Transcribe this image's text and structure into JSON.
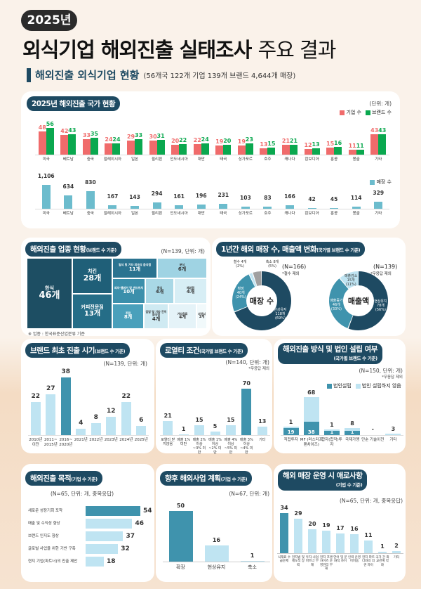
{
  "header": {
    "year_badge": "2025년",
    "title_bold": "외식기업 해외진출 실태조사",
    "title_light": "주요 결과",
    "section_title": "해외진출 외식기업 현황",
    "section_summary": "(56개국 122개 기업 139개 브랜드 4,644개 매장)"
  },
  "colors": {
    "navy": "#1e4a62",
    "company": "#f06b6b",
    "brand": "#0aa84f",
    "store": "#6cbccd",
    "dark_bar": "#3f93ad",
    "light_bar": "#bfe4f2"
  },
  "country": {
    "chip": "2025년 해외진출 국가 현황",
    "unit": "(단위: 개)",
    "legend_company": "기업 수",
    "legend_brand": "브랜드 수",
    "legend_store": "매장 수"
  },
  "donuts": {
    "chip": "1년간 해외 매장 수, 매출액 변화",
    "chip_sub": "(국가별 브랜드 수 기준)",
    "store": {
      "center": "매장 수",
      "n": "(N=166)",
      "note": "*철수 제외",
      "segments": [
        {
          "label": "현상유지",
          "count": "118개",
          "pct": "(69%)",
          "value": 69,
          "color": "#1e4a62"
        },
        {
          "label": "확장",
          "count": "40개",
          "pct": "(24%)",
          "value": 24,
          "color": "#3f93ad"
        },
        {
          "label": "철수 4개",
          "count": "",
          "pct": "(2%)",
          "value": 2,
          "color": "#bfe4f2"
        },
        {
          "label": "축소 8개",
          "count": "",
          "pct": "(5%)",
          "value": 5,
          "color": "#a0a0a0"
        }
      ]
    },
    "sales": {
      "center": "매출액",
      "n": "(N=139)",
      "note": "*무응답 제외",
      "segments": [
        {
          "label": "현상유지",
          "count": "78개",
          "pct": "(56%)",
          "value": 56,
          "color": "#1e4a62"
        },
        {
          "label": "매출증가",
          "count": "46개",
          "pct": "(33%)",
          "value": 33,
          "color": "#3f93ad"
        },
        {
          "label": "매출감소",
          "count": "15개",
          "pct": "(11%)",
          "value": 11,
          "color": "#bfe4f2"
        }
      ]
    }
  },
  "industry": {
    "chip": "해외진출 업종 현황",
    "chip_sub": "(브랜드 수 기준)",
    "note": "(N=139, 단위: 개)",
    "footnote": "※ 업종 : 한국표준산업분류 기준",
    "items": [
      {
        "label": "한식",
        "value": "46개"
      },
      {
        "label": "치킨",
        "value": "28개"
      },
      {
        "label": "커피전문점",
        "value": "13개"
      },
      {
        "label": "일식 및 기타 외국식 음식점",
        "value": "11개"
      },
      {
        "label": "분식",
        "value": "6개"
      },
      {
        "label": "피자·햄버거 및 샌드위치",
        "value": "10개"
      },
      {
        "label": "중식",
        "value": "4개"
      },
      {
        "label": "제과점",
        "value": "4개"
      },
      {
        "label": "주점",
        "value": "8개"
      },
      {
        "label": "김밥 및 기타 간이음식점",
        "value": "4개"
      },
      {
        "label": "기타음료",
        "value": "4개"
      },
      {
        "label": "서양식",
        "value": "1개"
      }
    ]
  },
  "entry": {
    "chip": "브랜드 최초 진출 시기",
    "chip_sub": "(브랜드 수 기준)",
    "note": "(N=139, 단위: 개)"
  },
  "royalty": {
    "chip": "로열티 조건",
    "chip_sub": "(국가별 브랜드 수 기준)",
    "note": "(N=140, 단위: 개)",
    "note2": "*무응답 제외"
  },
  "method": {
    "chip": "해외진출 방식 및 법인 설립 여부",
    "chip_sub": "(국가별 브랜드 수 기준)",
    "note": "(N=150, 단위: 개)",
    "note2": "*무응답 제외",
    "legend_corp": "법인설립",
    "legend_nocorp": "법인 설립하지 않음"
  },
  "purpose": {
    "chip": "해외진출 목적",
    "chip_sub": "(기업 수 기준)",
    "note": "(N=65, 단위: 개, 중복응답)"
  },
  "plan": {
    "chip": "향후 해외사업 계획",
    "chip_sub": "(기업 수 기준)",
    "note": "(N=67, 단위: 개)"
  },
  "difficulty": {
    "chip": "해외 매장 운영 시 애로사항",
    "chip_sub": "(기업 수 기준)",
    "note": "(N=65, 단위: 개, 중복응답)"
  },
  "chart_data": [
    {
      "type": "bar",
      "title": "2025년 해외진출 국가 현황",
      "categories": [
        "미국",
        "베트남",
        "중국",
        "말레이시아",
        "일본",
        "필리핀",
        "인도네시아",
        "대만",
        "태국",
        "싱가포르",
        "호주",
        "캐나다",
        "캄보디아",
        "홍콩",
        "몽골",
        "기타"
      ],
      "series": [
        {
          "name": "기업 수",
          "values": [
            48,
            42,
            33,
            24,
            29,
            30,
            20,
            22,
            19,
            19,
            13,
            21,
            12,
            15,
            11,
            43
          ]
        },
        {
          "name": "브랜드 수",
          "values": [
            56,
            43,
            35,
            24,
            33,
            31,
            22,
            24,
            20,
            23,
            15,
            21,
            13,
            16,
            11,
            43
          ]
        }
      ],
      "ylim": [
        0,
        56
      ]
    },
    {
      "type": "bar",
      "categories": [
        "미국",
        "베트남",
        "중국",
        "말레이시아",
        "일본",
        "필리핀",
        "인도네시아",
        "대만",
        "태국",
        "싱가포르",
        "호주",
        "캐나다",
        "캄보디아",
        "홍콩",
        "몽골",
        "기타"
      ],
      "series": [
        {
          "name": "매장 수",
          "values": [
            1106,
            634,
            830,
            167,
            143,
            294,
            161,
            196,
            231,
            103,
            83,
            166,
            42,
            45,
            114,
            329
          ]
        }
      ],
      "value_labels": [
        "1,106",
        "634",
        "830",
        "167",
        "143",
        "294",
        "161",
        "196",
        "231",
        "103",
        "83",
        "166",
        "42",
        "45",
        "114",
        "329"
      ],
      "ylim": [
        0,
        1106
      ]
    },
    {
      "type": "bar",
      "title": "브랜드 최초 진출 시기",
      "categories": [
        "2010년 이전",
        "2011~ 2015년",
        "2016~ 2020년",
        "2021년",
        "2022년",
        "2023년",
        "2024년",
        "2025년"
      ],
      "values": [
        22,
        27,
        38,
        4,
        8,
        12,
        22,
        6
      ],
      "highlight": 2,
      "ylim": [
        0,
        38
      ]
    },
    {
      "type": "bar",
      "title": "로열티 조건",
      "categories": [
        "로열티 받지않음",
        "매출 1% 미만",
        "매출 2% 이상 ~3% 미만",
        "매출 1% 이상 ~2% 미만",
        "매출 4% 이상 ~5% 미만",
        "매출 3% 이상 ~4% 미만",
        "기타"
      ],
      "values": [
        21,
        1,
        15,
        5,
        15,
        70,
        13
      ],
      "highlight": 5,
      "ylim": [
        0,
        70
      ]
    },
    {
      "type": "bar",
      "stacked": true,
      "title": "해외진출 방식 및 법인 설립 여부",
      "categories": [
        "직접투자",
        "MF (마스터프랜차이즈)",
        "합자(합작)투자",
        "국제가맹",
        "단순 기술이전",
        "기타"
      ],
      "series": [
        {
          "name": "법인설립",
          "values": [
            19,
            38,
            1,
            1,
            0,
            0
          ],
          "labels": [
            "19",
            "38",
            "1",
            "1",
            "",
            ""
          ]
        },
        {
          "name": "법인 설립하지 않음",
          "values": [
            1,
            68,
            1,
            8,
            0,
            3
          ],
          "labels": [
            "1",
            "68",
            "1",
            "8",
            "-",
            "3"
          ]
        }
      ],
      "ylim": [
        0,
        106
      ]
    },
    {
      "type": "bar",
      "orientation": "horizontal",
      "title": "해외진출 목적",
      "categories": [
        "새로운 성장기회 포착",
        "매출 및 수익성 향상",
        "브랜드 인지도 향상",
        "글로벌 사업을 위한 기반 구축",
        "현지 기업(파트너)의 진출 제안"
      ],
      "values": [
        54,
        46,
        37,
        32,
        18
      ],
      "highlight": 0,
      "xlim": [
        0,
        54
      ]
    },
    {
      "type": "bar",
      "title": "향후 해외사업 계획",
      "categories": [
        "확장",
        "현상유지",
        "축소"
      ],
      "values": [
        50,
        16,
        1
      ],
      "highlight": 0,
      "ylim": [
        0,
        50
      ]
    },
    {
      "type": "bar",
      "title": "해외 매장 운영 시 애로사항",
      "categories": [
        "식재료 수급문제",
        "현지법 및 제도적 장벽",
        "투자·사업 파트너 부재",
        "현지 프랜차이즈 운영관리 부재",
        "언어 및 문화적 차이",
        "인력 운영 어려움",
        "현지 파트너와의 의견 차이",
        "국가 간 외교관계 악화",
        "기타"
      ],
      "values": [
        34,
        29,
        20,
        19,
        17,
        16,
        11,
        1,
        2
      ],
      "highlight": 0,
      "ylim": [
        0,
        34
      ]
    }
  ]
}
